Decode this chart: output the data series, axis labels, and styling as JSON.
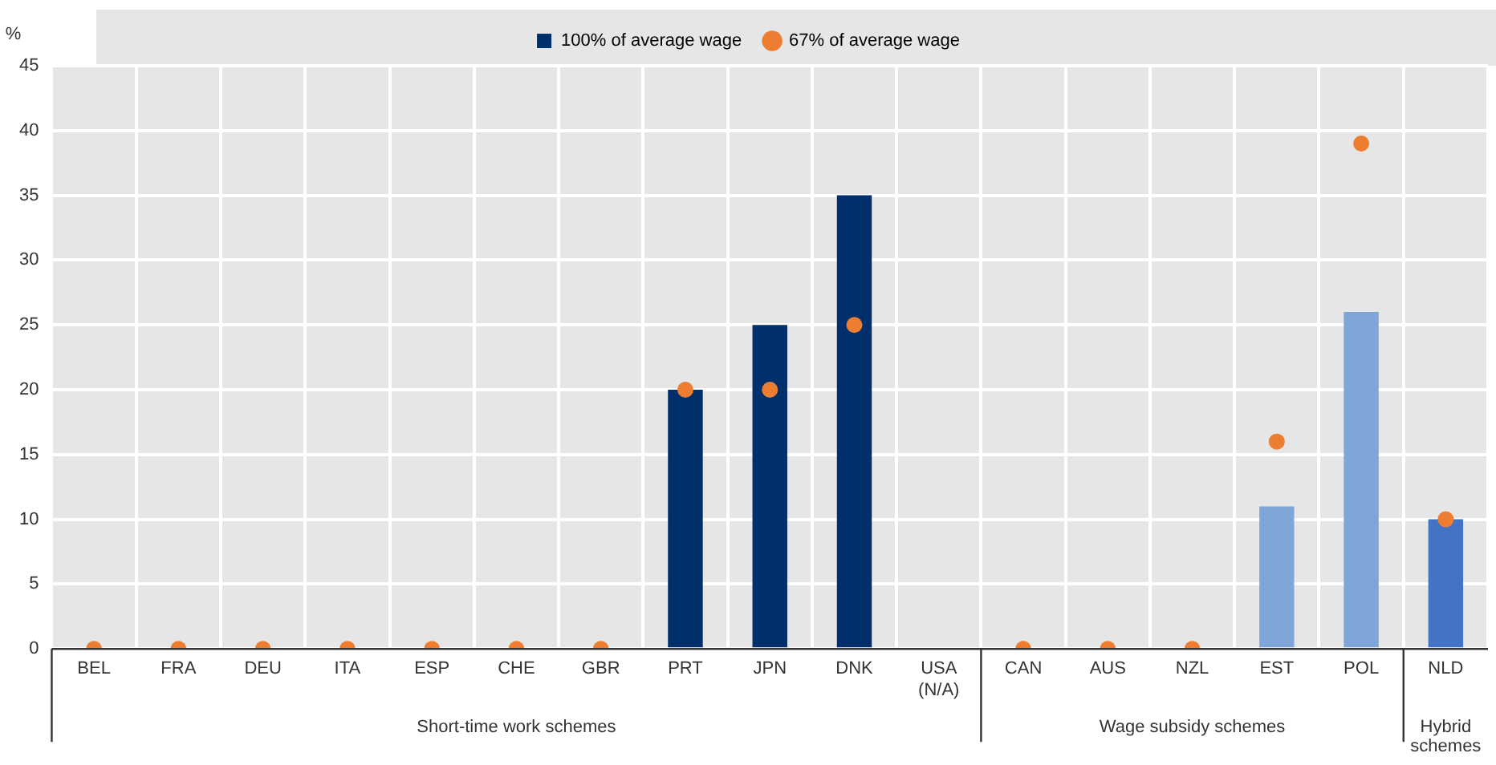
{
  "chart_data": {
    "type": "bar",
    "ylabel": "%",
    "categories": [
      "BEL",
      "FRA",
      "DEU",
      "ITA",
      "ESP",
      "CHE",
      "GBR",
      "PRT",
      "JPN",
      "DNK",
      "USA (N/A)",
      "CAN",
      "AUS",
      "NZL",
      "EST",
      "POL",
      "NLD"
    ],
    "series": [
      {
        "name": "100% of average wage",
        "color": "#002f6c",
        "colors": [
          "#002f6c",
          "#002f6c",
          "#002f6c",
          "#002f6c",
          "#002f6c",
          "#002f6c",
          "#002f6c",
          "#002f6c",
          "#002f6c",
          "#002f6c",
          "#002f6c",
          "#7fa6d9",
          "#7fa6d9",
          "#7fa6d9",
          "#7fa6d9",
          "#7fa6d9",
          "#4472c4"
        ],
        "values": [
          0,
          0,
          0,
          0,
          0,
          0,
          0,
          20,
          25,
          35,
          null,
          0,
          0,
          0,
          11,
          26,
          10
        ]
      },
      {
        "name": "67% of average wage",
        "type": "scatter",
        "color": "#ed7d31",
        "values": [
          0,
          0,
          0,
          0,
          0,
          0,
          0,
          20,
          20,
          25,
          null,
          0,
          0,
          0,
          16,
          39,
          10
        ]
      }
    ],
    "ylim": [
      0,
      45
    ],
    "yticks": [
      0,
      5,
      10,
      15,
      20,
      25,
      30,
      35,
      40,
      45
    ],
    "grid": true,
    "legend": "top",
    "marker": "circle",
    "annotations": [
      "Short-time work schemes",
      "Wage subsidy schemes",
      "Hybrid schemes"
    ]
  }
}
